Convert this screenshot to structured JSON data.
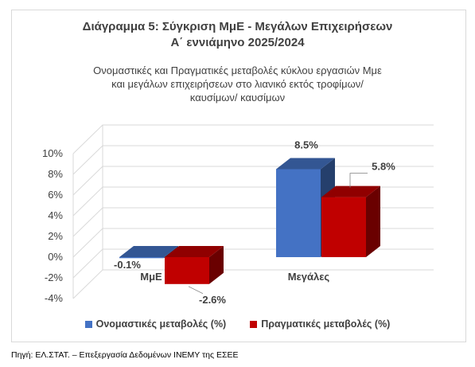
{
  "title_line1": "Διάγραμμα 5: Σύγκριση ΜμΕ - Μεγάλων Επιχειρήσεων",
  "title_line2": "Α΄ εννιάμηνο 2025/2024",
  "subtitle_line1": "Ονομαστικές και Πραγματικές μεταβολές κύκλου εργασιών Mμε",
  "subtitle_line2": "και μεγάλων επιχειρήσεων στο λιανικό εκτός τροφίμων/",
  "subtitle_line3": "καυσίμων/ καυσίμων",
  "source": "Πηγή: ΕΛ.ΣΤΑΤ. – Επεξεργασία Δεδομένων ΙΝΕΜΥ της ΕΣΕΕ",
  "colors": {
    "nominal": "#4472c4",
    "real": "#c00000"
  },
  "chart_data": {
    "type": "bar",
    "categories": [
      "ΜμΕ",
      "Μεγάλες"
    ],
    "series": [
      {
        "name": "Ονομαστικές μεταβολές (%)",
        "values": [
          -0.1,
          8.5
        ],
        "labels": [
          "-0.1%",
          "8.5%"
        ]
      },
      {
        "name": "Πραγματικές μεταβολές (%)",
        "values": [
          -2.6,
          5.8
        ],
        "labels": [
          "-2.6%",
          "5.8%"
        ]
      }
    ],
    "yticks": [
      "10%",
      "8%",
      "6%",
      "4%",
      "2%",
      "0%",
      "-2%",
      "-4%"
    ],
    "ylim": [
      -4,
      10
    ],
    "legend_position": "bottom",
    "style": "3d-clustered-column"
  }
}
